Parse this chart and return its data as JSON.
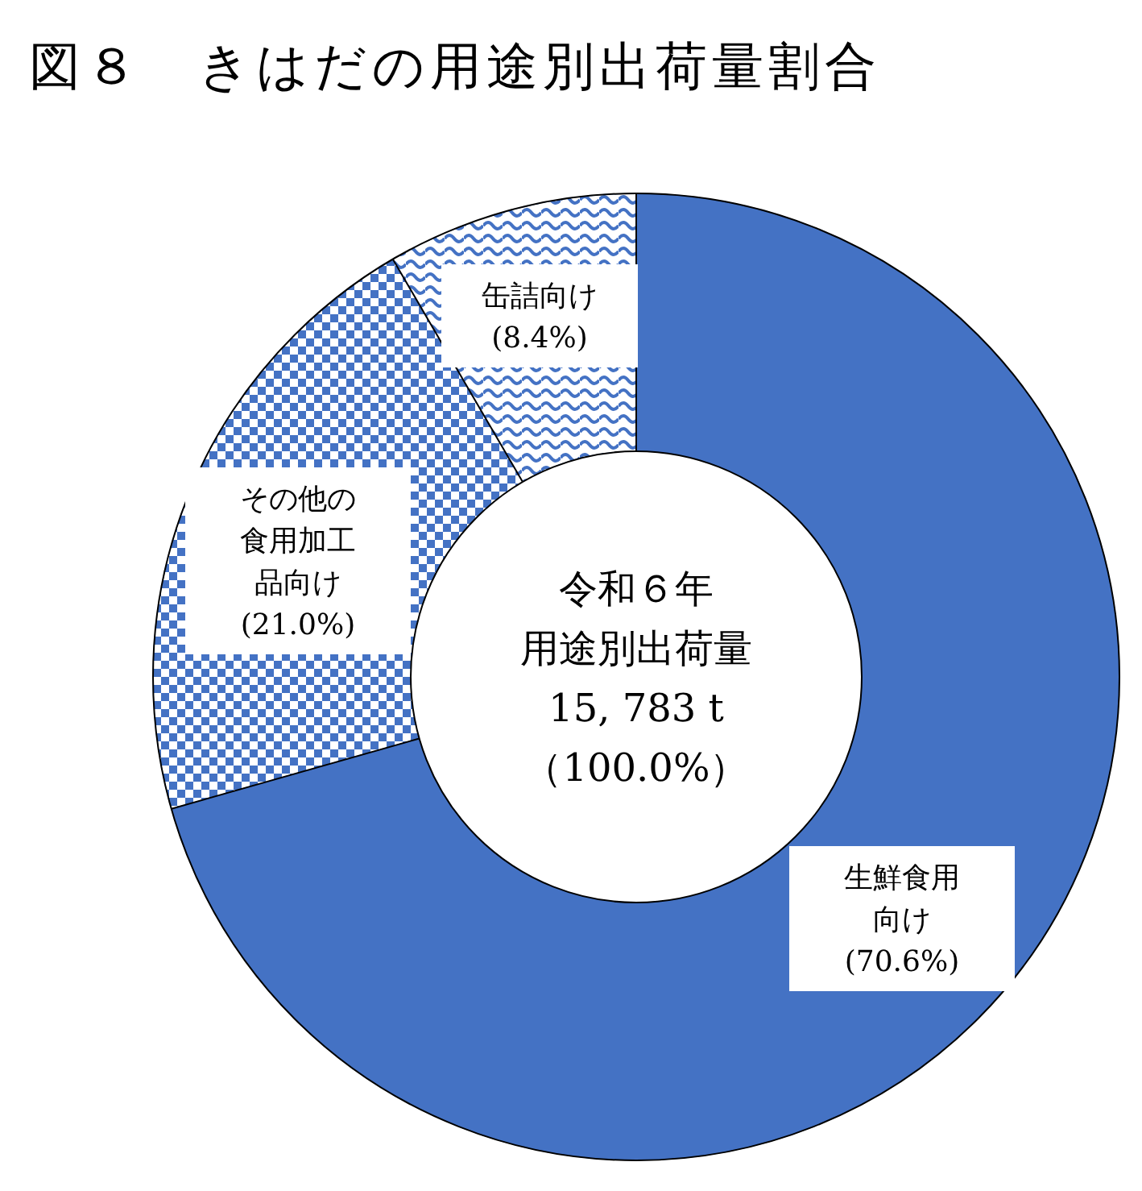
{
  "chart_data": {
    "type": "donut",
    "title": "図８　きはだの用途別出荷量割合",
    "categories": [
      "生鮮食用向け",
      "その他の食用加工品向け",
      "缶詰向け"
    ],
    "values": [
      70.6,
      21.0,
      8.4
    ],
    "value_labels": [
      "(70.6%)",
      "(21.0%)",
      "(8.4%)"
    ],
    "colors": [
      "#4472c4",
      "#4472c4",
      "#4472c4"
    ],
    "annotations": [
      "令和６年",
      "用途別出荷量",
      "15, 783 t",
      "（100.0%）"
    ]
  }
}
